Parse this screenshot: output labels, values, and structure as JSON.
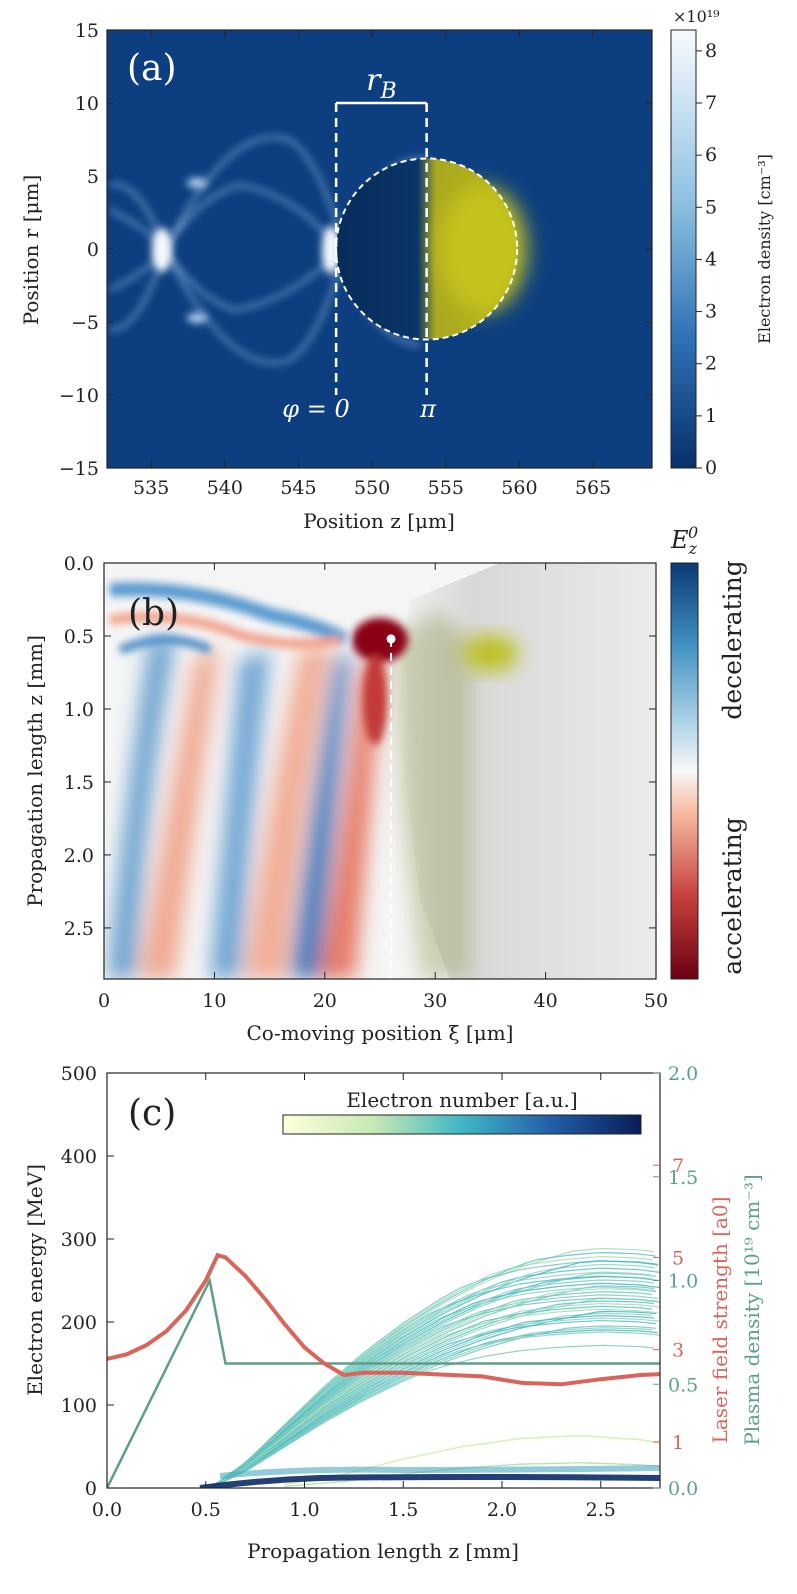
{
  "colors": {
    "density_dark": "#0b3b7a",
    "density_bright": "#f4f8ff",
    "laser_yellow": "#c9cc14",
    "decel_blue": "#1f5fa8",
    "accel_red": "#7a0f18",
    "laser_curve": "#d9655a",
    "plasma_curve": "#5e9e86",
    "right_axis_green": "#5aa08e"
  },
  "chart_data": [
    {
      "panel": "(a)",
      "type": "heatmap",
      "xlabel": "Position z [μm]",
      "ylabel": "Position r [μm]",
      "xlim": [
        532,
        569
      ],
      "ylim": [
        -15,
        15
      ],
      "xticks": [
        "535",
        "540",
        "545",
        "550",
        "555",
        "560",
        "565"
      ],
      "yticks": [
        "−15",
        "−10",
        "−5",
        "0",
        "5",
        "10",
        "15"
      ],
      "colorbar": {
        "label": "Electron density [cm⁻³]",
        "range": [
          0,
          8.4
        ],
        "ticks": [
          "0",
          "1",
          "2",
          "3",
          "4",
          "5",
          "6",
          "7",
          "8"
        ],
        "exponent": "×10¹⁹"
      },
      "annotations": {
        "bubble_radius": "rB",
        "phase_start": "φ = 0",
        "phase_end": "π"
      },
      "bubble": {
        "center_z": 553.7,
        "center_r": 0,
        "radius_um": 6.2
      },
      "laser_spot": {
        "center_z": 557.5,
        "center_r": 0,
        "half_length": 3,
        "half_width": 4.3
      }
    },
    {
      "panel": "(b)",
      "type": "heatmap",
      "xlabel": "Co-moving position ξ [μm]",
      "ylabel": "Propagation length z [mm]",
      "xlim": [
        0,
        50
      ],
      "ylim": [
        0,
        2.85
      ],
      "xticks": [
        "0",
        "10",
        "20",
        "30",
        "40",
        "50"
      ],
      "yticks": [
        "0.0",
        "0.5",
        "1.0",
        "1.5",
        "2.0",
        "2.5"
      ],
      "colorbar": {
        "label": "E_z^0",
        "label_top": "decelerating",
        "label_bottom": "accelerating"
      },
      "injection_point": {
        "xi": 26,
        "z": 0.52
      }
    },
    {
      "panel": "(c)",
      "type": "line",
      "xlabel": "Propagation length z [mm]",
      "ylabel": "Electron energy [MeV]",
      "xlim": [
        0,
        2.8
      ],
      "ylim": [
        0,
        500
      ],
      "xticks": [
        "0.0",
        "0.5",
        "1.0",
        "1.5",
        "2.0",
        "2.5"
      ],
      "yticks": [
        "0",
        "100",
        "200",
        "300",
        "400",
        "500"
      ],
      "right_axis_laser": {
        "label": "Laser field strength [a0]",
        "ticks": [
          "1",
          "3",
          "5",
          "7"
        ],
        "ylim": [
          0,
          9
        ]
      },
      "right_axis_plasma": {
        "label": "Plasma density [10¹⁹ cm⁻³]",
        "ticks": [
          "0.0",
          "0.5",
          "1.0",
          "1.5",
          "2.0"
        ],
        "ylim": [
          0,
          2
        ]
      },
      "colorbar": {
        "label": "Electron number [a.u.]"
      },
      "series": [
        {
          "name": "Laser field strength",
          "x": [
            0,
            0.1,
            0.2,
            0.3,
            0.4,
            0.5,
            0.56,
            0.6,
            0.7,
            0.8,
            0.9,
            1.0,
            1.1,
            1.2,
            1.3,
            1.5,
            1.7,
            1.9,
            2.1,
            2.3,
            2.5,
            2.7,
            2.8
          ],
          "values": [
            2.8,
            2.9,
            3.1,
            3.4,
            3.85,
            4.5,
            5.05,
            5.0,
            4.6,
            4.1,
            3.55,
            3.05,
            2.7,
            2.45,
            2.5,
            2.5,
            2.46,
            2.42,
            2.28,
            2.25,
            2.36,
            2.45,
            2.47
          ]
        },
        {
          "name": "Plasma density",
          "x": [
            0,
            0.52,
            0.6,
            2.8
          ],
          "values": [
            0,
            1.0,
            0.6,
            0.6
          ]
        },
        {
          "name": "Electron energy (upper branch)",
          "x": [
            0.52,
            0.7,
            0.9,
            1.1,
            1.3,
            1.5,
            1.7,
            1.9,
            2.1,
            2.3,
            2.5,
            2.7,
            2.8
          ],
          "values": [
            0,
            30,
            75,
            120,
            160,
            195,
            225,
            250,
            270,
            285,
            298,
            305,
            306
          ]
        },
        {
          "name": "Electron energy (lower branch)",
          "x": [
            0.9,
            1.2,
            1.5,
            1.8,
            2.1,
            2.4,
            2.7,
            2.8
          ],
          "values": [
            5,
            20,
            42,
            60,
            72,
            76,
            70,
            65
          ]
        }
      ]
    }
  ]
}
